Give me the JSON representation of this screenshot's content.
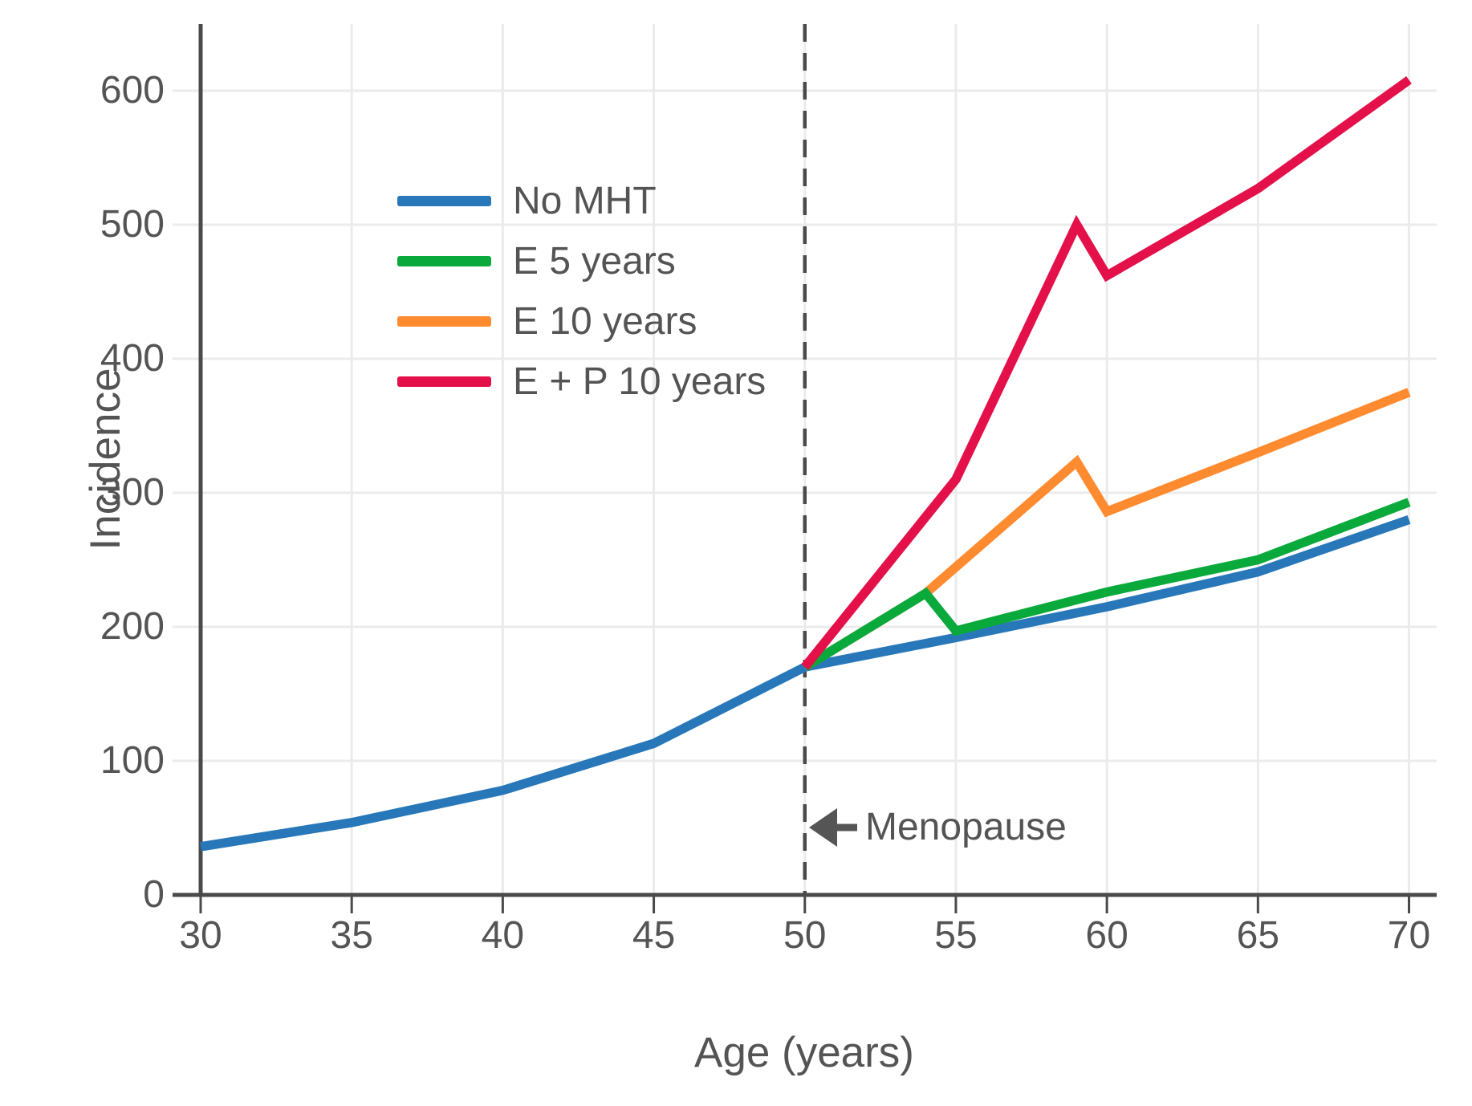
{
  "chart_data": {
    "type": "line",
    "title": "",
    "xlabel": "Age (years)",
    "ylabel": "Incidence",
    "xlim": [
      30,
      70.9
    ],
    "ylim": [
      0,
      650
    ],
    "x_ticks": [
      30,
      35,
      40,
      45,
      50,
      55,
      60,
      65,
      70
    ],
    "y_ticks": [
      0,
      100,
      200,
      300,
      400,
      500,
      600
    ],
    "grid": true,
    "legend_position": "upper-left-inside",
    "series": [
      {
        "name": "No MHT",
        "color": "#2878b9",
        "points": [
          [
            30,
            36
          ],
          [
            35,
            54
          ],
          [
            40,
            78
          ],
          [
            45,
            113
          ],
          [
            50,
            170
          ],
          [
            55,
            192
          ],
          [
            60,
            215
          ],
          [
            65,
            241
          ],
          [
            70,
            280
          ]
        ]
      },
      {
        "name": "E 10 years",
        "color": "#ff8b30",
        "points": [
          [
            50,
            170
          ],
          [
            54,
            225
          ],
          [
            59,
            323
          ],
          [
            60,
            286
          ],
          [
            65,
            330
          ],
          [
            70,
            375
          ]
        ]
      },
      {
        "name": "E 5 years",
        "color": "#0aa93c",
        "points": [
          [
            50,
            170
          ],
          [
            54,
            225
          ],
          [
            55,
            197
          ],
          [
            60,
            226
          ],
          [
            65,
            250
          ],
          [
            70,
            293
          ]
        ]
      },
      {
        "name": "E + P 10 years",
        "color": "#e31049",
        "points": [
          [
            50,
            170
          ],
          [
            55,
            310
          ],
          [
            59,
            500
          ],
          [
            60,
            462
          ],
          [
            65,
            527
          ],
          [
            70,
            608
          ]
        ]
      }
    ],
    "legend": {
      "items": [
        {
          "label": "No MHT",
          "color": "#2878b9"
        },
        {
          "label": "E 5 years",
          "color": "#0aa93c"
        },
        {
          "label": "E 10 years",
          "color": "#ff8b30"
        },
        {
          "label": "E + P 10 years",
          "color": "#e31049"
        }
      ]
    },
    "annotations": {
      "menopause_line_x": 50,
      "menopause_label": "Menopause"
    }
  },
  "styles": {
    "background": "#ffffff",
    "grid_color": "#ebebeb",
    "axis_color": "#4a4a4a",
    "dashed_line_color": "#4a4a4a",
    "arrow_color": "#555555",
    "text_color": "#545454"
  }
}
